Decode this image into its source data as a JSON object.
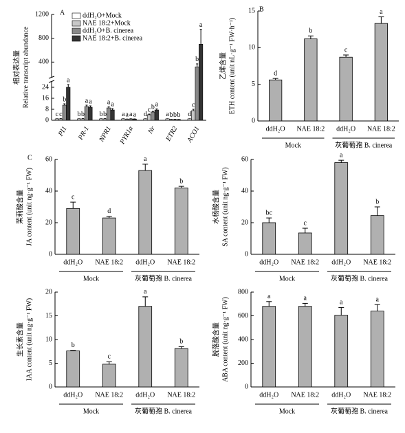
{
  "chart_data": [
    {
      "type": "grouped_bar_break",
      "panel": "A",
      "y_label_zh": "相对表达量",
      "y_label": "Relative transcript abundance",
      "categories": [
        "PI1",
        "PR-1",
        "NPR1",
        "PYR1a",
        "Nr",
        "ETR2",
        "ACO1"
      ],
      "ylim_lower": [
        0,
        28
      ],
      "ylim_upper": [
        150,
        1200
      ],
      "yticks": [
        0,
        8,
        16,
        24,
        400,
        800,
        1200
      ],
      "series": [
        {
          "name": "ddH₂O+Mock",
          "color": "#ffffff",
          "values": [
            1,
            1,
            1,
            1,
            1,
            1,
            1
          ],
          "errors": [
            0.1,
            0.1,
            0.1,
            0.1,
            0.1,
            0.1,
            0.1
          ],
          "significance": [
            "c",
            "b",
            "b",
            "a",
            "d",
            "a",
            "d"
          ]
        },
        {
          "name": "NAE 18:2+Mock",
          "color": "#c8c8c8",
          "values": [
            1,
            1,
            1,
            0.8,
            4,
            0.6,
            7
          ],
          "errors": [
            0.2,
            0.2,
            0.2,
            0.1,
            0.5,
            0.1,
            1
          ],
          "significance": [
            "c",
            "b",
            "b",
            "a",
            "c",
            "b",
            "c"
          ]
        },
        {
          "name": "ddH₂O+B. cinerea",
          "color": "#888888",
          "values": [
            11,
            10,
            9,
            1,
            6,
            0.6,
            320
          ],
          "errors": [
            1,
            1,
            0.8,
            0.1,
            0.5,
            0.1,
            50
          ],
          "significance": [
            "b",
            "a",
            "a",
            "a",
            "b",
            "b",
            "b"
          ]
        },
        {
          "name": "NAE 18:2+B. cinerea",
          "color": "#333333",
          "values": [
            24,
            9.5,
            7.5,
            0.9,
            7.5,
            0.5,
            700
          ],
          "errors": [
            2,
            1,
            1,
            0.1,
            0.8,
            0.1,
            250
          ],
          "significance": [
            "a",
            "a",
            "a",
            "a",
            "a",
            "b",
            "a"
          ]
        }
      ]
    },
    {
      "type": "bar",
      "panel": "B",
      "y_label_zh": "乙烯含量",
      "y_label": "ETH content (unit nL·g⁻¹ FW·h⁻¹)",
      "categories": [
        "ddH₂O",
        "NAE 18:2",
        "ddH₂O",
        "NAE 18:2"
      ],
      "groups": [
        "Mock",
        "灰葡萄孢 B. cinerea"
      ],
      "values": [
        5.6,
        11.2,
        8.7,
        13.3
      ],
      "errors": [
        0.2,
        0.4,
        0.3,
        0.9
      ],
      "significance": [
        "d",
        "b",
        "c",
        "a"
      ],
      "color": "#b0b0b0",
      "ylim": [
        0,
        15
      ],
      "yticks": [
        0,
        5,
        10,
        15
      ]
    },
    {
      "type": "bar",
      "panel": "C",
      "y_label_zh": "茉莉酸含量",
      "y_label": "JA content (unit ng·g⁻¹ FW)",
      "categories": [
        "ddH₂O",
        "NAE 18:2",
        "ddH₂O",
        "NAE 18:2"
      ],
      "groups": [
        "Mock",
        "灰葡萄孢 B. cinerea"
      ],
      "values": [
        29,
        23,
        53,
        42
      ],
      "errors": [
        4,
        1,
        4,
        1
      ],
      "significance": [
        "c",
        "d",
        "a",
        "b"
      ],
      "color": "#b0b0b0",
      "ylim": [
        0,
        60
      ],
      "yticks": [
        0,
        20,
        40,
        60
      ]
    },
    {
      "type": "bar",
      "y_label_zh": "水杨酸含量",
      "y_label": "SA content (unit ng·g⁻¹ FW)",
      "categories": [
        "ddH₂O",
        "NAE 18:2",
        "ddH₂O",
        "NAE 18:2"
      ],
      "groups": [
        "Mock",
        "灰葡萄孢 B. cinerea"
      ],
      "values": [
        20,
        13.5,
        58,
        24.5
      ],
      "errors": [
        3,
        3,
        1.5,
        5.5
      ],
      "significance": [
        "bc",
        "c",
        "a",
        "b"
      ],
      "color": "#b0b0b0",
      "ylim": [
        0,
        60
      ],
      "yticks": [
        0,
        20,
        40,
        60
      ]
    },
    {
      "type": "bar",
      "y_label_zh": "生长素含量",
      "y_label": "IAA content (unit ng·g⁻¹ FW)",
      "categories": [
        "ddH₂O",
        "NAE 18:2",
        "ddH₂O",
        "NAE 18:2"
      ],
      "groups": [
        "Mock",
        "灰葡萄孢 B. cinerea"
      ],
      "values": [
        7.6,
        4.8,
        17,
        8.1
      ],
      "errors": [
        0.1,
        0.5,
        2,
        0.4
      ],
      "significance": [
        "b",
        "c",
        "a",
        "b"
      ],
      "color": "#b0b0b0",
      "ylim": [
        0,
        20
      ],
      "yticks": [
        0,
        5,
        10,
        15,
        20
      ]
    },
    {
      "type": "bar",
      "y_label_zh": "脱落酸含量",
      "y_label": "ABA content (unit ng·g⁻¹ FW)",
      "categories": [
        "ddH₂O",
        "NAE 18:2",
        "ddH₂O",
        "NAE 18:2"
      ],
      "groups": [
        "Mock",
        "灰葡萄孢 B. cinerea"
      ],
      "values": [
        680,
        680,
        605,
        640
      ],
      "errors": [
        40,
        25,
        65,
        55
      ],
      "significance": [
        "a",
        "a",
        "a",
        "a"
      ],
      "color": "#b0b0b0",
      "ylim": [
        0,
        800
      ],
      "yticks": [
        0,
        200,
        400,
        600,
        800
      ]
    }
  ]
}
